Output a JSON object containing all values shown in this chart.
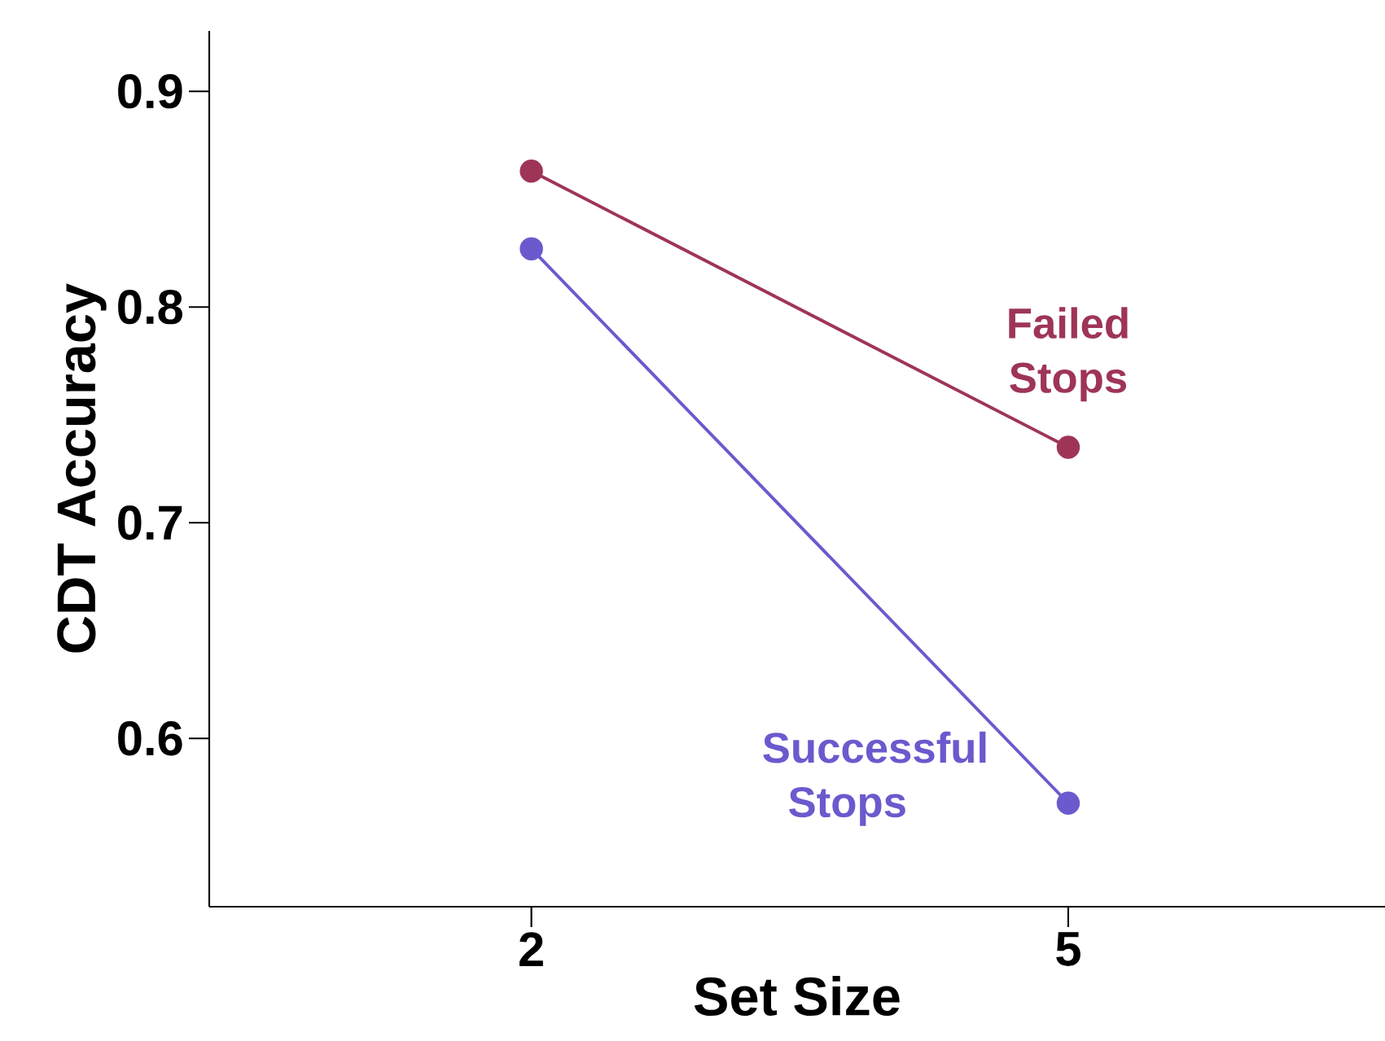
{
  "chart_data": {
    "type": "line",
    "xlabel": "Set Size",
    "ylabel": "CDT Accuracy",
    "categories": [
      "2",
      "5"
    ],
    "series": [
      {
        "name": "Failed Stops",
        "color": "#9e3557",
        "values": [
          0.863,
          0.735
        ]
      },
      {
        "name": "Successful Stops",
        "color": "#6a5acd",
        "values": [
          0.827,
          0.57
        ]
      }
    ],
    "ylim": [
      0.522,
      0.928
    ],
    "yticks": [
      0.6,
      0.7,
      0.8,
      0.9
    ],
    "marker": "circle",
    "grid": false
  }
}
